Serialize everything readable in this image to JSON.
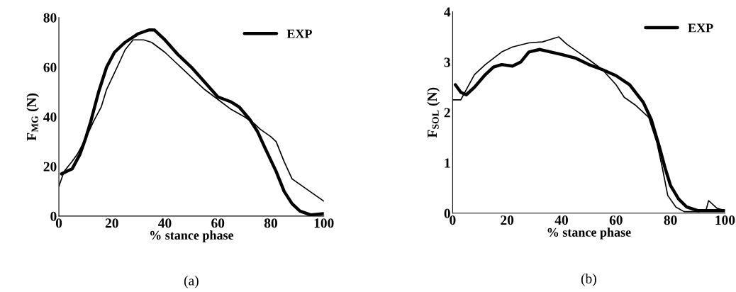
{
  "chart_data": [
    {
      "type": "line",
      "xlabel": "% stance phase",
      "ylabel": "F$_{MG}$ (N)",
      "annotations": [
        "(a)"
      ],
      "xlim": [
        0,
        100
      ],
      "ylim": [
        0,
        80
      ],
      "xticks": [
        0,
        20,
        40,
        60,
        80,
        100
      ],
      "yticks": [
        0,
        20,
        40,
        60,
        80
      ],
      "legend": "top right",
      "grid": false,
      "series": [
        {
          "name": "EXP",
          "color": "#000000",
          "x": [
            1,
            3,
            5,
            8,
            10,
            12,
            15,
            18,
            21,
            25,
            30,
            34,
            36,
            40,
            45,
            50,
            55,
            60,
            65,
            68,
            72,
            75,
            78,
            82,
            85,
            88,
            91,
            95,
            100
          ],
          "values": [
            17,
            18,
            19,
            25,
            31,
            38,
            50,
            60,
            66,
            70,
            73.5,
            75,
            75,
            71,
            65,
            60,
            54,
            48,
            46,
            44,
            39,
            34,
            27,
            18,
            10,
            5,
            2,
            0.5,
            1
          ]
        },
        {
          "color": "#000000",
          "x": [
            0,
            2,
            5,
            7,
            10,
            13,
            16,
            18,
            22,
            25,
            28,
            32,
            35,
            40,
            45,
            50,
            55,
            60,
            65,
            70,
            74,
            76,
            80,
            82,
            85,
            88,
            92,
            96,
            100
          ],
          "values": [
            12,
            18,
            22,
            25,
            31,
            38,
            44,
            51,
            60,
            67,
            71,
            71,
            70,
            66,
            61,
            56,
            51,
            47,
            43,
            40,
            37,
            35,
            32,
            30,
            22,
            15,
            12,
            9,
            6
          ]
        }
      ]
    },
    {
      "type": "line",
      "xlabel": "% stance phase",
      "ylabel": "F$_{SOL}$ (N)",
      "annotations": [
        "(b)"
      ],
      "xlim": [
        0,
        100
      ],
      "ylim": [
        0,
        4
      ],
      "xticks": [
        0,
        20,
        40,
        60,
        80,
        100
      ],
      "yticks": [
        0,
        1,
        2,
        3,
        4
      ],
      "legend": "top right",
      "grid": false,
      "series": [
        {
          "name": "EXP",
          "color": "#000000",
          "x": [
            1,
            3,
            5,
            8,
            12,
            15,
            18,
            22,
            25,
            28,
            32,
            36,
            40,
            45,
            50,
            55,
            60,
            65,
            70,
            73,
            76,
            78,
            80,
            83,
            86,
            90,
            95,
            100
          ],
          "values": [
            2.55,
            2.4,
            2.35,
            2.5,
            2.75,
            2.9,
            2.95,
            2.92,
            3.0,
            3.2,
            3.25,
            3.2,
            3.15,
            3.08,
            2.95,
            2.85,
            2.73,
            2.55,
            2.2,
            1.85,
            1.3,
            0.9,
            0.55,
            0.28,
            0.12,
            0.05,
            0.05,
            0.05
          ]
        },
        {
          "color": "#000000",
          "x": [
            0,
            3,
            5,
            8,
            12,
            18,
            22,
            28,
            33,
            36,
            39,
            42,
            46,
            50,
            55,
            60,
            63,
            67,
            72,
            75,
            77,
            79,
            82,
            85,
            90,
            93,
            94,
            97,
            100
          ],
          "values": [
            2.25,
            2.25,
            2.45,
            2.75,
            2.95,
            3.2,
            3.3,
            3.38,
            3.4,
            3.45,
            3.5,
            3.35,
            3.2,
            3.05,
            2.85,
            2.55,
            2.3,
            2.15,
            1.9,
            1.4,
            0.9,
            0.35,
            0.12,
            0.03,
            0.03,
            0.05,
            0.25,
            0.1,
            0.05
          ]
        }
      ]
    }
  ]
}
